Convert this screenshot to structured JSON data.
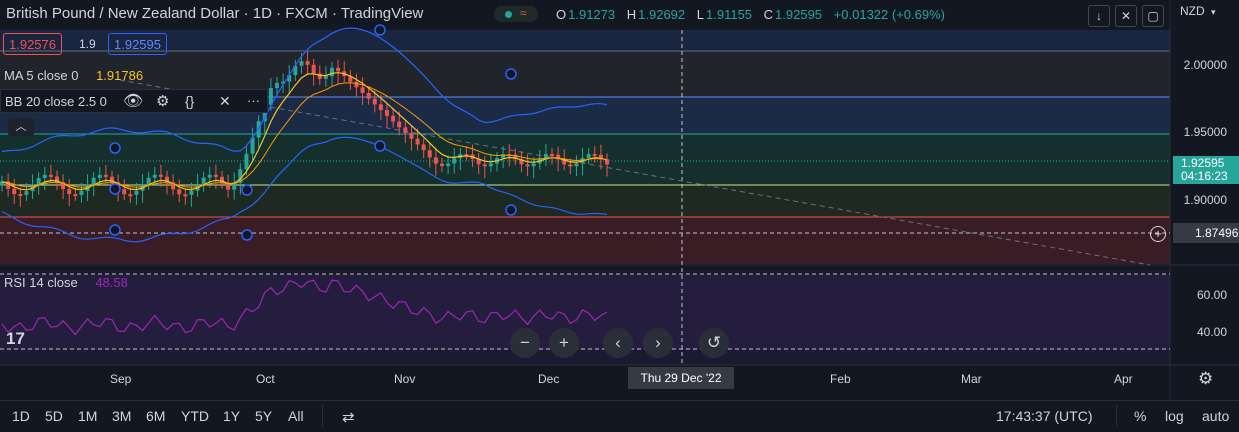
{
  "header": {
    "title": "British Pound / New Zealand Dollar · 1D · FXCM · TradingView",
    "ohlc": [
      {
        "key": "O",
        "value": "1.91273"
      },
      {
        "key": "H",
        "value": "1.92692"
      },
      {
        "key": "L",
        "value": "1.91155"
      },
      {
        "key": "C",
        "value": "1.92595"
      },
      {
        "key": "",
        "value": "+0.01322 (+0.69%)"
      }
    ],
    "sell_price": "1.92576",
    "spread": "1.9",
    "buy_price": "1.92595",
    "currency": "NZD"
  },
  "indicators": {
    "ma": {
      "label": "MA 5 close 0",
      "value": "1.91786"
    },
    "bb": {
      "label": "BB 20 close 2.5 0"
    },
    "rsi": {
      "label": "RSI 14 close",
      "value": "48.58"
    }
  },
  "price_axis": {
    "ticks": [
      "2.00000",
      "1.95000",
      "1.90000"
    ],
    "current_price": "1.92595",
    "countdown": "04:16:23",
    "crosshair_price": "1.87496"
  },
  "rsi_axis": {
    "ticks": [
      "60.00",
      "40.00"
    ]
  },
  "time_axis": {
    "ticks": [
      "Sep",
      "Oct",
      "Nov",
      "Dec",
      "Feb",
      "Mar",
      "Apr"
    ],
    "crosshair_date": "Thu 29 Dec '22"
  },
  "bottom_bar": {
    "timeframes": [
      "1D",
      "5D",
      "1M",
      "3M",
      "6M",
      "YTD",
      "1Y",
      "5Y",
      "All"
    ],
    "clock": "17:43:37 (UTC)",
    "percent": "%",
    "log": "log",
    "auto": "auto"
  },
  "colors": {
    "background": "#131722",
    "up": "#26a69a",
    "down": "#ef5350",
    "bb_band": "#2962ff",
    "ma_line": "#f7c520",
    "rsi_line": "#9c27b0"
  }
}
